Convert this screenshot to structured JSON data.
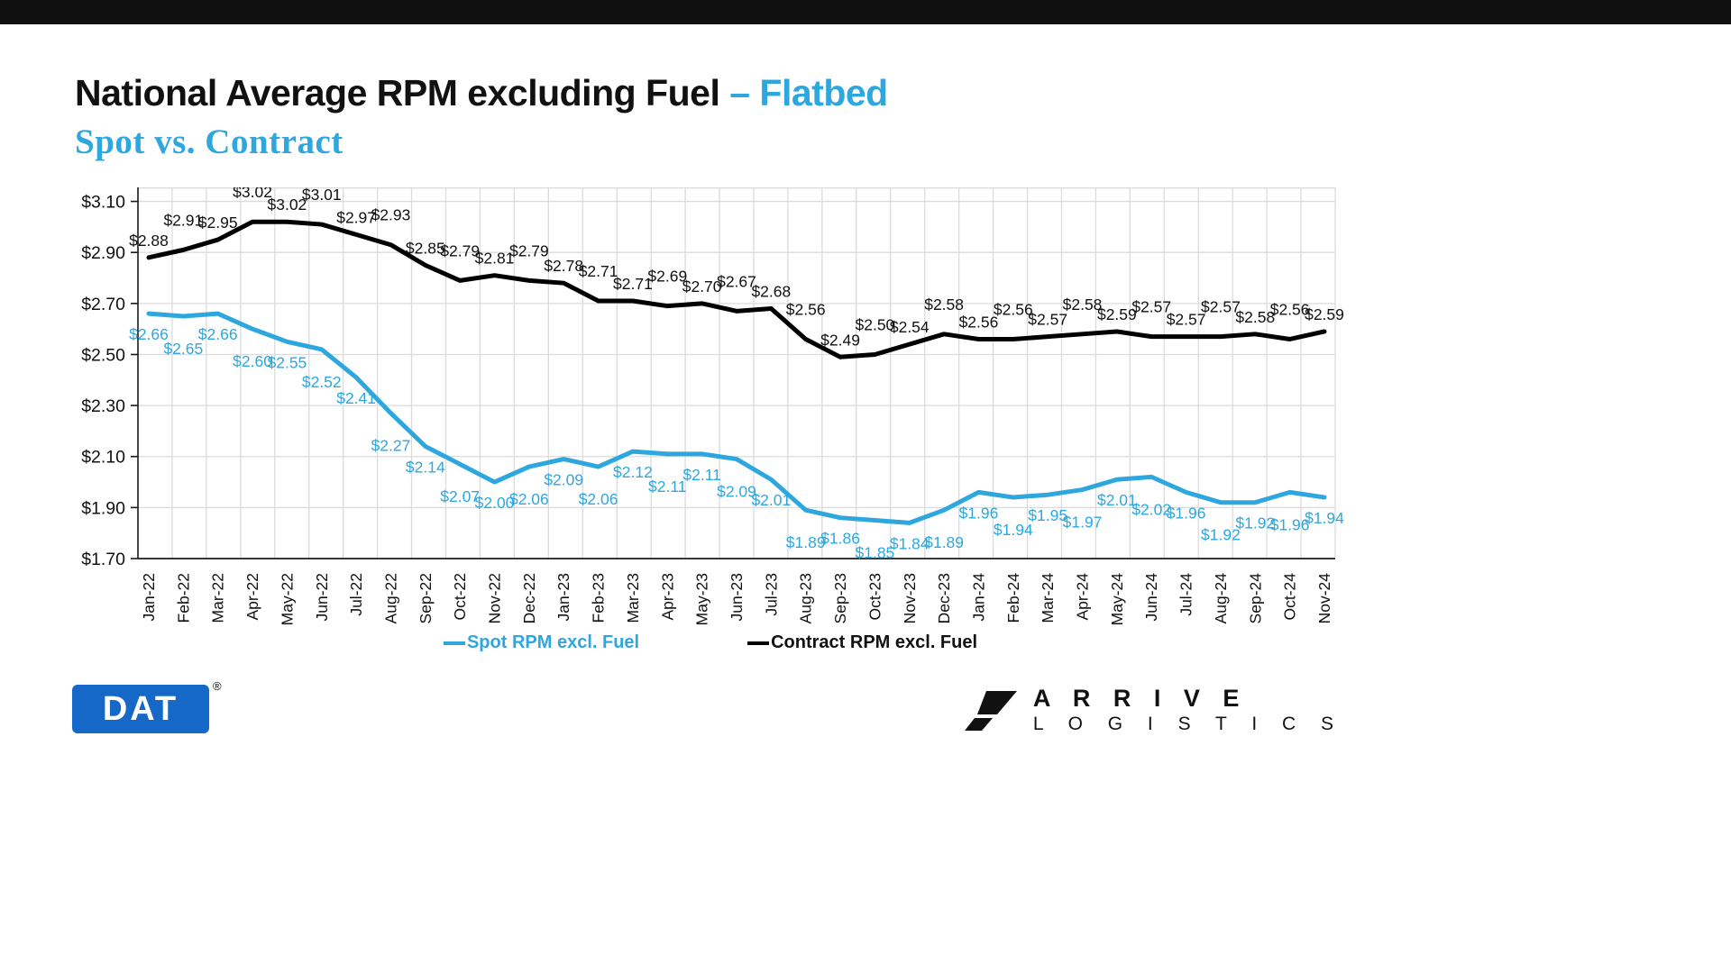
{
  "page": {
    "title_main": "National Average RPM excluding Fuel ",
    "title_accent": "– Flatbed",
    "subtitle": "Spot vs. Contract"
  },
  "legend": {
    "spot_label": "Spot RPM excl. Fuel",
    "contract_label": "Contract RPM excl. Fuel"
  },
  "colors": {
    "spot": "#2EA7DF",
    "contract": "#000000",
    "grid": "#DBDBDB",
    "axis": "#1a1a1a",
    "dat_blue": "#1568C8"
  },
  "footer": {
    "dat_logo_text": "DAT",
    "dat_registered_mark": "®",
    "arrive_line1": "A R R I V E",
    "arrive_line2": "L O G I S T I C S"
  },
  "chart_data": {
    "type": "line",
    "title": "National Average RPM excluding Fuel – Flatbed, Spot vs. Contract",
    "categories": [
      "Jan-22",
      "Feb-22",
      "Mar-22",
      "Apr-22",
      "May-22",
      "Jun-22",
      "Jul-22",
      "Aug-22",
      "Sep-22",
      "Oct-22",
      "Nov-22",
      "Dec-22",
      "Jan-23",
      "Feb-23",
      "Mar-23",
      "Apr-23",
      "May-23",
      "Jun-23",
      "Jul-23",
      "Aug-23",
      "Sep-23",
      "Oct-23",
      "Nov-23",
      "Dec-23",
      "Jan-24",
      "Feb-24",
      "Mar-24",
      "Apr-24",
      "May-24",
      "Jun-24",
      "Jul-24",
      "Aug-24",
      "Sep-24",
      "Oct-24",
      "Nov-24"
    ],
    "series": [
      {
        "name": "Spot RPM excl. Fuel",
        "color_key": "spot",
        "values": [
          2.66,
          2.65,
          2.66,
          2.6,
          2.55,
          2.52,
          2.41,
          2.27,
          2.14,
          2.07,
          2.0,
          2.06,
          2.09,
          2.06,
          2.12,
          2.11,
          2.11,
          2.09,
          2.01,
          1.89,
          1.86,
          1.85,
          1.84,
          1.89,
          1.96,
          1.94,
          1.95,
          1.97,
          2.01,
          2.02,
          1.96,
          1.92,
          1.92,
          1.96,
          1.94
        ]
      },
      {
        "name": "Contract RPM excl. Fuel",
        "color_key": "contract",
        "values": [
          2.88,
          2.91,
          2.95,
          3.02,
          3.02,
          3.01,
          2.97,
          2.93,
          2.85,
          2.79,
          2.81,
          2.79,
          2.78,
          2.71,
          2.71,
          2.69,
          2.7,
          2.67,
          2.68,
          2.56,
          2.49,
          2.5,
          2.54,
          2.58,
          2.56,
          2.56,
          2.57,
          2.58,
          2.59,
          2.57,
          2.57,
          2.57,
          2.58,
          2.56,
          2.59
        ]
      }
    ],
    "yticks": [
      1.7,
      1.9,
      2.1,
      2.3,
      2.5,
      2.7,
      2.9,
      3.1
    ],
    "ylim": [
      1.7,
      3.155
    ],
    "value_prefix": "$",
    "grid": true,
    "legend_position": "bottom",
    "xlabel": "",
    "ylabel": ""
  }
}
